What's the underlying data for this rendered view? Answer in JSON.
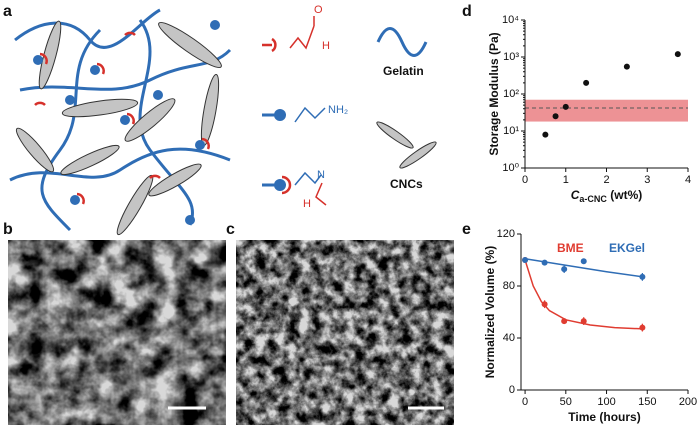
{
  "schematic": {
    "panel_label": "a",
    "aldehyde_o": "O",
    "aldehyde_h": "H",
    "amine": "NH₂",
    "imine_n": "N",
    "imine_h": "H",
    "gelatin": "Gelatin",
    "cncs": "CNCs"
  },
  "images": [
    {
      "panel_label": "b"
    },
    {
      "panel_label": "c"
    }
  ],
  "chart_data": [
    {
      "type": "scatter",
      "panel_label": "d",
      "ylabel": "Storage Modulus (Pa)",
      "xlabel_parts": [
        "C",
        "a-CNC",
        " (wt%)"
      ],
      "x": [
        0.5,
        0.75,
        1.0,
        1.5,
        2.5,
        3.75
      ],
      "values": [
        8,
        25,
        45,
        200,
        550,
        1200
      ],
      "color": "#111111",
      "xlim": [
        0,
        4
      ],
      "xticks": [
        0,
        1,
        2,
        3,
        4
      ],
      "yscale": "log",
      "ylim": [
        1,
        10000
      ],
      "yticks": [
        {
          "value": 1,
          "label": "10⁰"
        },
        {
          "value": 10,
          "label": "10¹"
        },
        {
          "value": 100,
          "label": "10²"
        },
        {
          "value": 1000,
          "label": "10³"
        },
        {
          "value": 10000,
          "label": "10⁴"
        }
      ],
      "band": [
        18,
        70
      ],
      "band_color": "#e8777a",
      "reference_line": 42
    },
    {
      "type": "scatter",
      "panel_label": "e",
      "ylabel": "Normalized Volume (%)",
      "xlabel": "Time (hours)",
      "xlim": [
        -5,
        200
      ],
      "xticks": [
        0,
        50,
        100,
        150,
        200
      ],
      "ylim": [
        0,
        120
      ],
      "yticks": [
        0,
        40,
        80,
        120
      ],
      "series": [
        {
          "name": "BME",
          "color": "#e03c31",
          "x": [
            0,
            24,
            48,
            72,
            144
          ],
          "values": [
            100,
            66,
            53,
            53,
            48
          ],
          "errors": [
            1,
            3,
            1,
            3,
            3
          ],
          "fit_x": [
            0,
            10,
            20,
            30,
            50,
            80,
            110,
            145
          ],
          "fit_values": [
            100,
            80,
            68,
            61,
            54,
            50,
            48,
            47
          ]
        },
        {
          "name": "EKGel",
          "color": "#2f6db5",
          "x": [
            0,
            24,
            48,
            72,
            144
          ],
          "values": [
            100,
            98,
            93,
            99,
            87
          ],
          "errors": [
            1,
            2,
            3,
            2,
            3
          ],
          "fit_x": [
            0,
            50,
            100,
            145
          ],
          "fit_values": [
            101,
            96,
            91,
            87
          ]
        }
      ]
    }
  ]
}
